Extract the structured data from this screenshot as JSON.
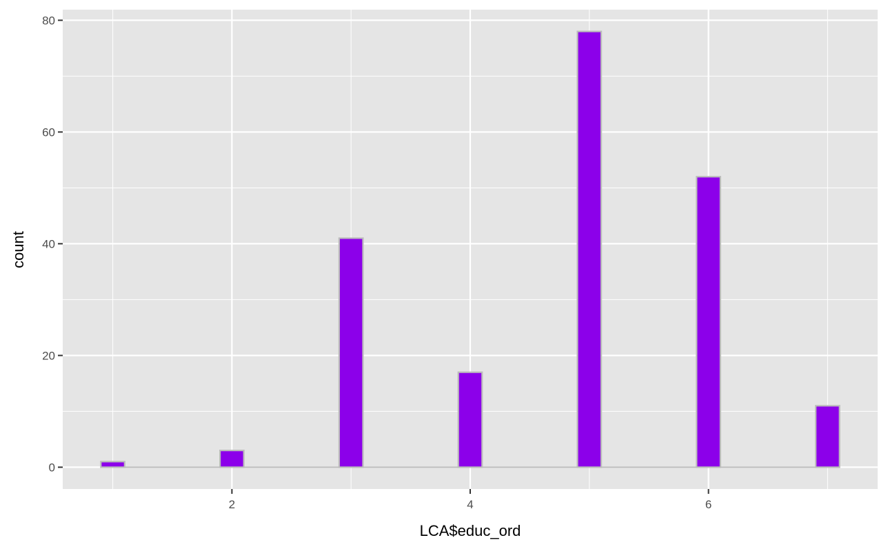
{
  "chart_data": {
    "type": "bar",
    "x": [
      1,
      2,
      3,
      4,
      5,
      6,
      7
    ],
    "values": [
      1,
      3,
      41,
      17,
      78,
      52,
      11
    ],
    "title": "",
    "xlabel": "LCA$educ_ord",
    "ylabel": "count",
    "xlim": [
      0.58,
      7.42
    ],
    "ylim": [
      -3.9,
      81.9
    ],
    "x_ticks": [
      "2",
      "4",
      "6"
    ],
    "y_ticks": [
      "0",
      "20",
      "40",
      "60",
      "80"
    ],
    "grid": true,
    "legend": "none",
    "colors": {
      "panel": "#e5e5e5",
      "grid": "#ffffff",
      "bar_fill": "#8c00ea",
      "bar_outline": "#bcbcbc",
      "axis_text": "#4d4d4d",
      "axis_title": "#000000"
    }
  }
}
